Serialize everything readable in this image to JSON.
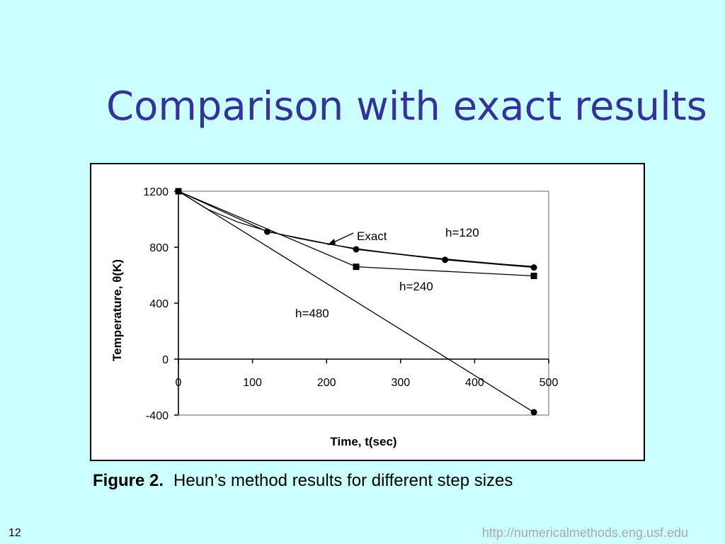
{
  "slide": {
    "title": "Comparison with exact results",
    "caption_label": "Figure 2.",
    "caption_text": "Heun’s method results for different step sizes",
    "slide_number": "12",
    "footer_url": "http://numericalmethods.eng.usf.edu"
  },
  "chart_data": {
    "type": "line",
    "title": "",
    "xlabel": "Time, t(sec)",
    "ylabel": "Temperature, θ(K)",
    "xlim": [
      0,
      500
    ],
    "ylim": [
      -400,
      1200
    ],
    "x_ticks": [
      0,
      100,
      200,
      300,
      400,
      500
    ],
    "y_ticks": [
      -400,
      0,
      400,
      800,
      1200
    ],
    "grid": false,
    "series": [
      {
        "name": "Exact",
        "marker": "none",
        "x": [
          0,
          40,
          80,
          120,
          160,
          200,
          240,
          280,
          320,
          360,
          400,
          440,
          480
        ],
        "y": [
          1200,
          1070,
          980,
          915,
          865,
          825,
          790,
          762,
          738,
          716,
          696,
          678,
          662
        ]
      },
      {
        "name": "h=120",
        "marker": "circle",
        "x": [
          0,
          120,
          240,
          360,
          480
        ],
        "y": [
          1200,
          911,
          785,
          710,
          655
        ]
      },
      {
        "name": "h=240",
        "marker": "square",
        "x": [
          0,
          240,
          480
        ],
        "y": [
          1200,
          660,
          595
        ]
      },
      {
        "name": "h=480",
        "marker": "circle",
        "x": [
          0,
          480
        ],
        "y": [
          1200,
          -380
        ]
      }
    ],
    "colors": {
      "line": "#000000",
      "plot_border": "#999999",
      "title": "#333399",
      "background": "#ccffff"
    }
  }
}
